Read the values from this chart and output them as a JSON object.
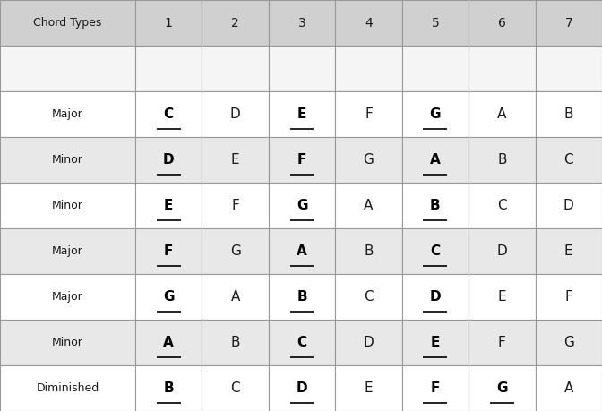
{
  "col_headers": [
    "Chord Types",
    "1",
    "2",
    "3",
    "4",
    "5",
    "6",
    "7"
  ],
  "rows": [
    {
      "chord_type": "Major",
      "notes": [
        "C",
        "D",
        "E",
        "F",
        "G",
        "A",
        "B"
      ],
      "bold_underline": [
        true,
        false,
        true,
        false,
        true,
        false,
        false
      ]
    },
    {
      "chord_type": "Minor",
      "notes": [
        "D",
        "E",
        "F",
        "G",
        "A",
        "B",
        "C"
      ],
      "bold_underline": [
        true,
        false,
        true,
        false,
        true,
        false,
        false
      ]
    },
    {
      "chord_type": "Minor",
      "notes": [
        "E",
        "F",
        "G",
        "A",
        "B",
        "C",
        "D"
      ],
      "bold_underline": [
        true,
        false,
        true,
        false,
        true,
        false,
        false
      ]
    },
    {
      "chord_type": "Major",
      "notes": [
        "F",
        "G",
        "A",
        "B",
        "C",
        "D",
        "E"
      ],
      "bold_underline": [
        true,
        false,
        true,
        false,
        true,
        false,
        false
      ]
    },
    {
      "chord_type": "Major",
      "notes": [
        "G",
        "A",
        "B",
        "C",
        "D",
        "E",
        "F"
      ],
      "bold_underline": [
        true,
        false,
        true,
        false,
        true,
        false,
        false
      ]
    },
    {
      "chord_type": "Minor",
      "notes": [
        "A",
        "B",
        "C",
        "D",
        "E",
        "F",
        "G"
      ],
      "bold_underline": [
        true,
        false,
        true,
        false,
        true,
        false,
        false
      ]
    },
    {
      "chord_type": "Diminished",
      "notes": [
        "B",
        "C",
        "D",
        "E",
        "F",
        "G",
        "A"
      ],
      "bold_underline": [
        true,
        false,
        true,
        false,
        true,
        true,
        false
      ]
    }
  ],
  "row_colors": [
    "#ffffff",
    "#e8e8e8",
    "#ffffff",
    "#e8e8e8",
    "#ffffff",
    "#e8e8e8",
    "#ffffff"
  ],
  "header_bg": "#d0d0d0",
  "empty_row_bg": "#f5f5f5",
  "border_color": "#999999",
  "text_color": "#1a1a1a",
  "bold_color": "#000000",
  "figsize": [
    6.72,
    4.59
  ],
  "dpi": 100
}
